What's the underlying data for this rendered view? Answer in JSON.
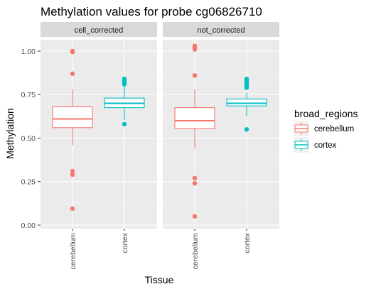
{
  "chart_data": {
    "type": "boxplot",
    "title": "Methylation values for probe cg06826710",
    "xlabel": "Tissue",
    "ylabel": "Methylation",
    "ylim": [
      0,
      1.1
    ],
    "yticks": [
      "0.00",
      "0.25",
      "0.50",
      "0.75",
      "1.00"
    ],
    "categories": [
      "cerebellum",
      "cortex"
    ],
    "legend": {
      "title": "broad_regions",
      "placement": "right",
      "entries": [
        {
          "label": "cerebellum",
          "color": "#F8766D"
        },
        {
          "label": "cortex",
          "color": "#00BFC4"
        }
      ]
    },
    "panels": [
      {
        "label": "cell_corrected",
        "boxes": [
          {
            "category": "cerebellum",
            "color": "#F8766D",
            "whisker_low": 0.46,
            "q1": 0.56,
            "median": 0.61,
            "q3": 0.68,
            "whisker_high": 0.78,
            "outliers": [
              1.0,
              0.995,
              0.87,
              0.31,
              0.29,
              0.095
            ]
          },
          {
            "category": "cortex",
            "color": "#00BFC4",
            "whisker_low": 0.605,
            "q1": 0.675,
            "median": 0.7,
            "q3": 0.73,
            "whisker_high": 0.8,
            "outliers": [
              0.84,
              0.83,
              0.82,
              0.81,
              0.58
            ]
          }
        ]
      },
      {
        "label": "not_corrected",
        "boxes": [
          {
            "category": "cerebellum",
            "color": "#F8766D",
            "whisker_low": 0.44,
            "q1": 0.555,
            "median": 0.6,
            "q3": 0.675,
            "whisker_high": 0.78,
            "outliers": [
              1.03,
              1.02,
              1.01,
              0.86,
              0.27,
              0.24,
              0.05
            ]
          },
          {
            "category": "cortex",
            "color": "#00BFC4",
            "whisker_low": 0.625,
            "q1": 0.685,
            "median": 0.7,
            "q3": 0.725,
            "whisker_high": 0.76,
            "outliers": [
              0.84,
              0.83,
              0.82,
              0.81,
              0.8,
              0.79,
              0.55
            ]
          }
        ]
      }
    ],
    "grid": true
  }
}
